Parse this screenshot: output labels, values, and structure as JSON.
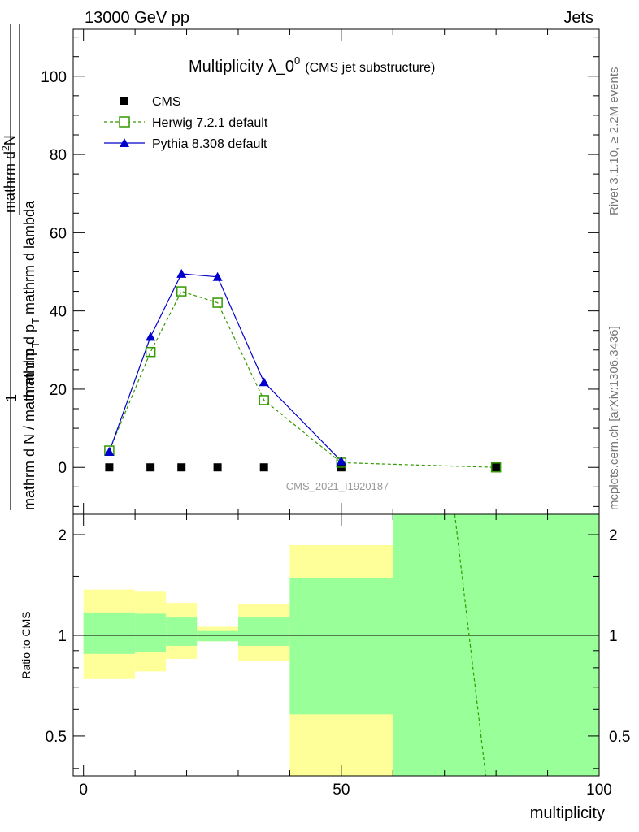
{
  "header": {
    "energy": "13000 GeV pp",
    "category": "Jets"
  },
  "side_labels": {
    "rivet": "Rivet 3.1.10, ≥ 2.2M events",
    "mcplots": "mcplots.cern.ch [arXiv:1306.3436]"
  },
  "chart_data": {
    "type": "line",
    "title": "Multiplicity λ_0",
    "title_sup": "0",
    "title_extra": "(CMS jet substructure)",
    "watermark": "CMS_2021_I1920187",
    "ylabel_top": "1",
    "ylabel_bottom_part": "mathrm d N / mathrm d p",
    "ylabel_bottom_sub": "T",
    "ylabel_upper_num": "mathrm d",
    "ylabel_upper_num_sup": "2",
    "ylabel_upper_num_end": "N",
    "ylabel_upper_den": "mathrm d p",
    "ylabel_upper_den_sub": "T",
    "ylabel_upper_den_end": "mathrm d lambda",
    "ratio_ylabel": "Ratio to CMS",
    "xlabel": "multiplicity",
    "xlim": [
      -2,
      100
    ],
    "ylim": [
      -12,
      112
    ],
    "ratio_ylim": [
      0.38,
      2.3
    ],
    "x_ticks": [
      0,
      50,
      100
    ],
    "y_ticks": [
      0,
      20,
      40,
      60,
      80,
      100
    ],
    "ratio_ticks": [
      0.5,
      1,
      2
    ],
    "legend": [
      "CMS",
      "Herwig 7.2.1 default",
      "Pythia 8.308 default"
    ],
    "colors": {
      "cms": "#000000",
      "herwig": "#339900",
      "pythia": "#0000cc",
      "band_inner": "#99ff99",
      "band_outer": "#ffff99"
    },
    "series": [
      {
        "name": "CMS",
        "x": [
          5,
          13,
          19,
          26,
          35,
          50,
          80
        ],
        "y": [
          0,
          0,
          0,
          0,
          0,
          0,
          0
        ]
      },
      {
        "name": "Herwig 7.2.1 default",
        "x": [
          5,
          13,
          19,
          26,
          35,
          50,
          80
        ],
        "y": [
          4.3,
          29.5,
          45.0,
          42.1,
          17.2,
          1.2,
          0.0
        ]
      },
      {
        "name": "Pythia 8.308 default",
        "x": [
          5,
          13,
          19,
          26,
          35,
          50
        ],
        "y": [
          4.0,
          33.4,
          49.5,
          48.7,
          21.8,
          1.6
        ]
      }
    ],
    "ratio_bands": [
      {
        "x0": 0,
        "x1": 10,
        "inner": [
          0.88,
          1.17
        ],
        "outer": [
          0.74,
          1.37
        ]
      },
      {
        "x0": 10,
        "x1": 16,
        "inner": [
          0.89,
          1.16
        ],
        "outer": [
          0.78,
          1.35
        ]
      },
      {
        "x0": 16,
        "x1": 22,
        "inner": [
          0.93,
          1.13
        ],
        "outer": [
          0.85,
          1.25
        ]
      },
      {
        "x0": 22,
        "x1": 30,
        "inner": [
          0.96,
          1.03
        ],
        "outer": [
          0.96,
          1.06
        ]
      },
      {
        "x0": 30,
        "x1": 40,
        "inner": [
          0.93,
          1.13
        ],
        "outer": [
          0.84,
          1.24
        ]
      },
      {
        "x0": 40,
        "x1": 60,
        "inner": [
          0.58,
          1.48
        ],
        "outer": [
          0.38,
          1.86
        ]
      },
      {
        "x0": 60,
        "x1": 100,
        "inner": [
          0.38,
          2.3
        ],
        "outer": [
          0.38,
          2.3
        ]
      }
    ],
    "ratio_herwig": {
      "x": [
        72,
        78
      ],
      "y": [
        2.3,
        0.38
      ]
    }
  }
}
